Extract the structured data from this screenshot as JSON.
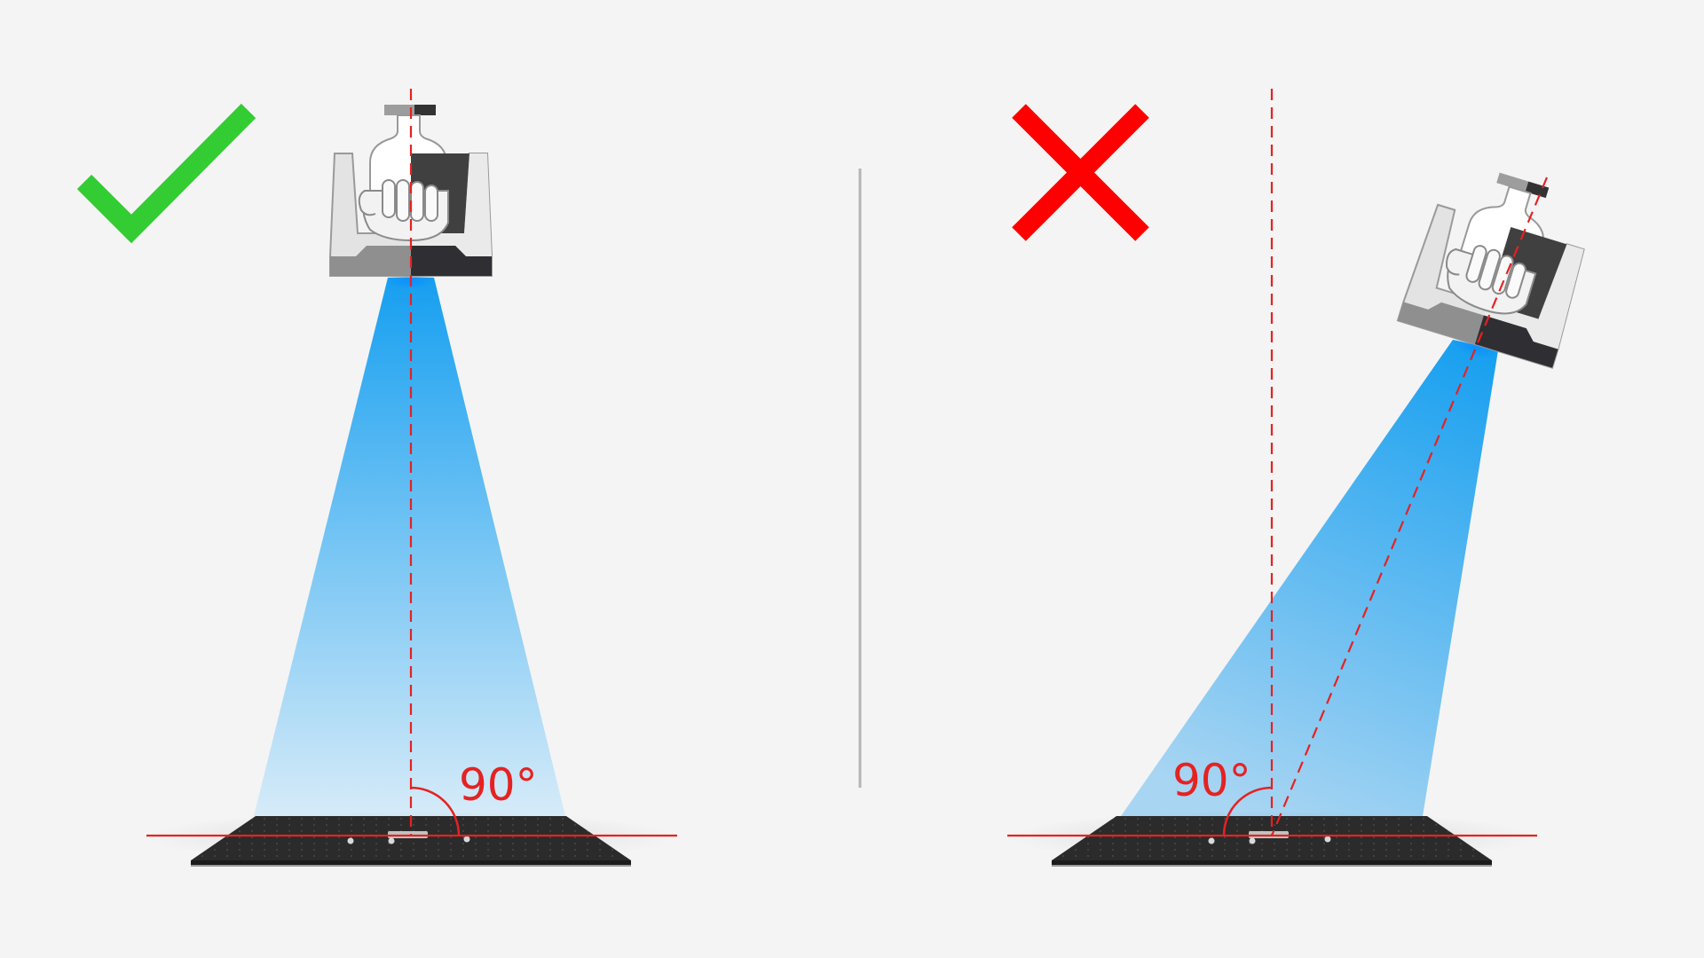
{
  "left_panel": {
    "verdict": "correct",
    "verdict_icon": "check-mark-icon",
    "angle_label": "90°"
  },
  "right_panel": {
    "verdict": "incorrect",
    "verdict_icon": "cross-mark-icon",
    "angle_label": "90°"
  },
  "colors": {
    "background": "#f4f4f4",
    "check": "#33cc33",
    "cross": "#ff0000",
    "guide_lines": "#e52222",
    "beam": "#1aa3f0",
    "board": "#2a2a2a",
    "divider": "#b5b5b5"
  }
}
